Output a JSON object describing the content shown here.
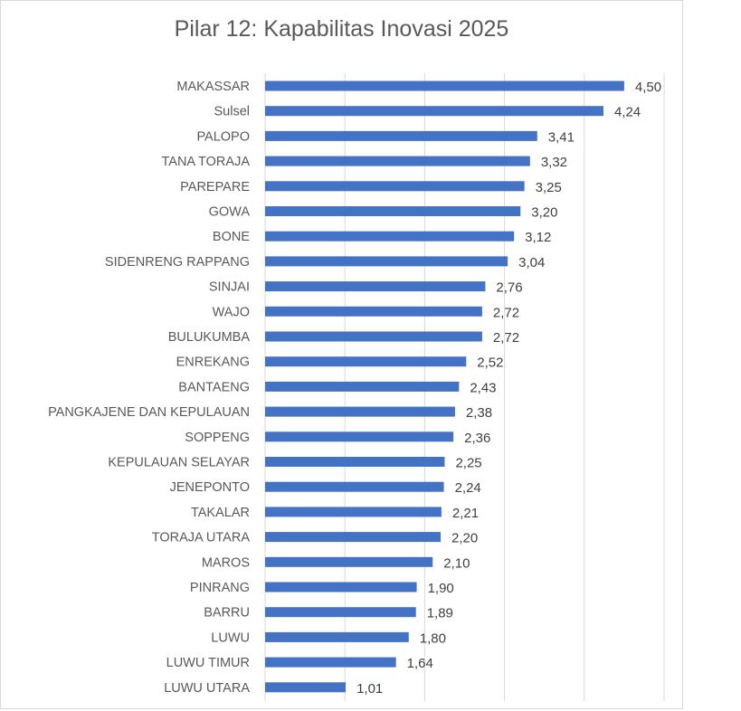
{
  "chart_data": {
    "type": "bar",
    "orientation": "horizontal",
    "title": "Pilar 12: Kapabilitas Inovasi 2025",
    "xlabel": "",
    "ylabel": "",
    "xlim": [
      0,
      5
    ],
    "grid": "vertical",
    "bar_color": "#4472c4",
    "categories": [
      "MAKASSAR",
      "Sulsel",
      "PALOPO",
      "TANA TORAJA",
      "PAREPARE",
      "GOWA",
      "BONE",
      "SIDENRENG RAPPANG",
      "SINJAI",
      "WAJO",
      "BULUKUMBA",
      "ENREKANG",
      "BANTAENG",
      "PANGKAJENE DAN KEPULAUAN",
      "SOPPENG",
      "KEPULAUAN SELAYAR",
      "JENEPONTO",
      "TAKALAR",
      "TORAJA UTARA",
      "MAROS",
      "PINRANG",
      "BARRU",
      "LUWU",
      "LUWU TIMUR",
      "LUWU UTARA"
    ],
    "values": [
      4.5,
      4.24,
      3.41,
      3.32,
      3.25,
      3.2,
      3.12,
      3.04,
      2.76,
      2.72,
      2.72,
      2.52,
      2.43,
      2.38,
      2.36,
      2.25,
      2.24,
      2.21,
      2.2,
      2.1,
      1.9,
      1.89,
      1.8,
      1.64,
      1.01
    ],
    "value_labels": [
      "4,50",
      "4,24",
      "3,41",
      "3,32",
      "3,25",
      "3,20",
      "3,12",
      "3,04",
      "2,76",
      "2,72",
      "2,72",
      "2,52",
      "2,43",
      "2,38",
      "2,36",
      "2,25",
      "2,24",
      "2,21",
      "2,20",
      "2,10",
      "1,90",
      "1,89",
      "1,80",
      "1,64",
      "1,01"
    ]
  }
}
